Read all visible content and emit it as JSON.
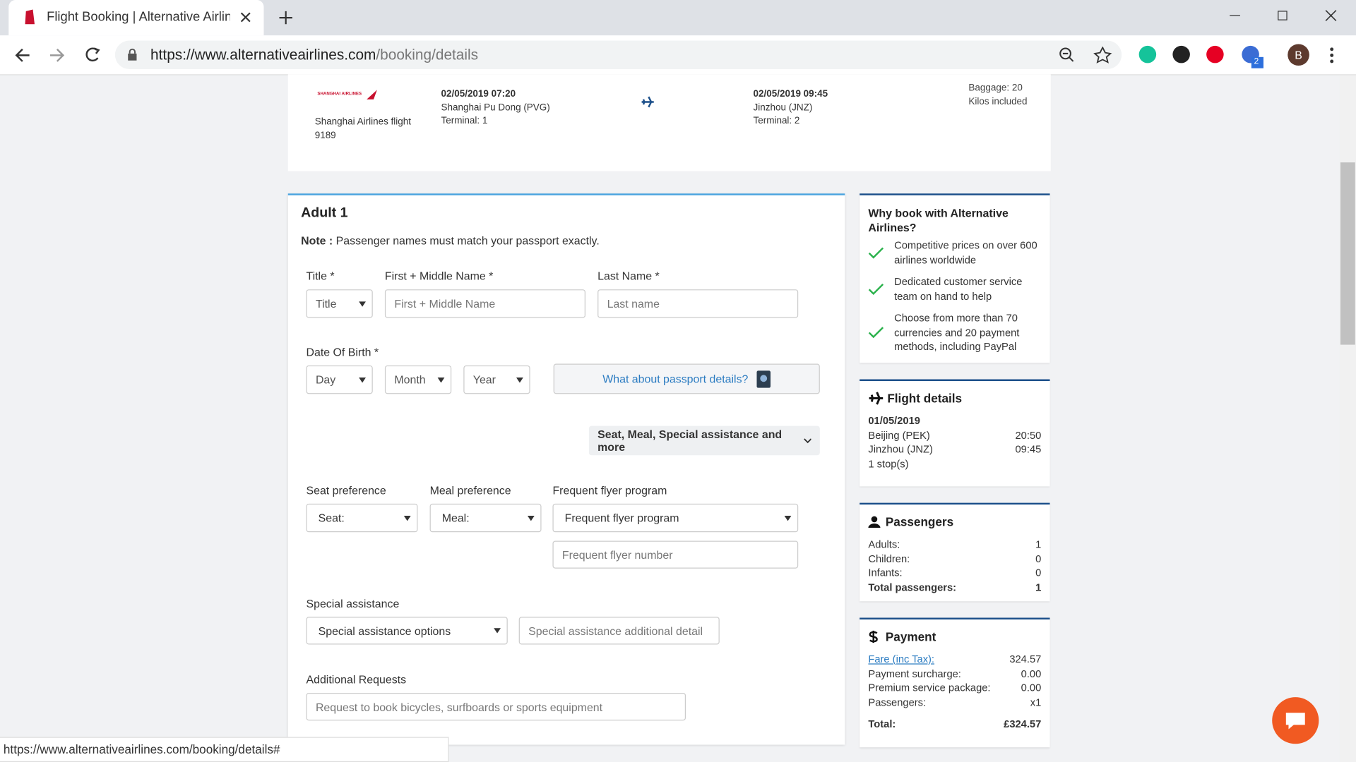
{
  "browser": {
    "tab_title": "Flight Booking | Alternative Airlin",
    "url_host": "https://www.alternativeairlines.com",
    "url_path": "/booking/details",
    "extension_badge": "2",
    "profile": "B",
    "status_url": "https://www.alternativeairlines.com/booking/details#"
  },
  "flight": {
    "airline_logo": "SHANGHAI AIRLINES",
    "flight_name": "Shanghai Airlines flight 9189",
    "depart": {
      "datetime": "02/05/2019 07:20",
      "airport": "Shanghai Pu Dong (PVG)",
      "terminal": "Terminal: 1"
    },
    "arrive": {
      "datetime": "02/05/2019 09:45",
      "airport": "Jinzhou (JNZ)",
      "terminal": "Terminal: 2"
    },
    "baggage": "Baggage: 20 Kilos included"
  },
  "form": {
    "heading": "Adult 1",
    "note_label": "Note :",
    "note_text": "Passenger names must match your passport exactly.",
    "title_label": "Title *",
    "title_placeholder": "Title",
    "first_label": "First + Middle Name *",
    "first_placeholder": "First + Middle Name",
    "last_label": "Last Name *",
    "last_placeholder": "Last name",
    "dob_label": "Date Of Birth *",
    "day": "Day",
    "month": "Month",
    "year": "Year",
    "passport_link": "What about passport details?",
    "more_options": "Seat, Meal, Special assistance and more",
    "seat_label": "Seat preference",
    "seat_placeholder": "Seat:",
    "meal_label": "Meal preference",
    "meal_placeholder": "Meal:",
    "ff_label": "Frequent flyer program",
    "ff_placeholder": "Frequent flyer program",
    "ff_number": "Frequent flyer number",
    "special_label": "Special assistance",
    "special_placeholder": "Special assistance options",
    "special_detail": "Special assistance additional detail",
    "requests_label": "Additional Requests",
    "requests_placeholder": "Request to book bicycles, surfboards or sports equipment"
  },
  "sidebar": {
    "why": {
      "title": "Why book with Alternative Airlines?",
      "reasons": [
        "Competitive prices on over 600 airlines worldwide",
        "Dedicated customer service team on hand to help",
        "Choose from more than 70 currencies and 20 payment methods, including PayPal"
      ]
    },
    "flight_details": {
      "title": "Flight details",
      "date": "01/05/2019",
      "rows": [
        [
          "Beijing (PEK)",
          "20:50"
        ],
        [
          "Jinzhou (JNZ)",
          "09:45"
        ]
      ],
      "stops": "1 stop(s)"
    },
    "passengers": {
      "title": "Passengers",
      "rows": [
        [
          "Adults:",
          "1"
        ],
        [
          "Children:",
          "0"
        ],
        [
          "Infants:",
          "0"
        ],
        [
          "Total passengers:",
          "1"
        ]
      ]
    },
    "payment": {
      "title": "Payment",
      "rows": [
        [
          "Fare (inc Tax):",
          "324.57"
        ],
        [
          "Payment surcharge:",
          "0.00"
        ],
        [
          "Premium service package:",
          "0.00"
        ],
        [
          "Passengers:",
          "x1"
        ]
      ],
      "total": [
        "Total:",
        "£324.57"
      ]
    }
  }
}
